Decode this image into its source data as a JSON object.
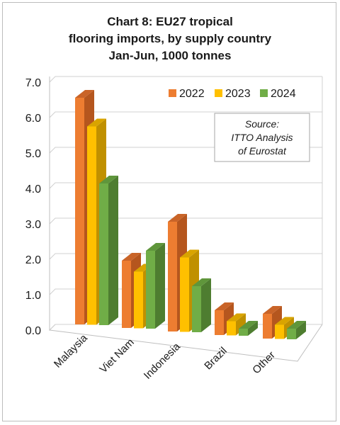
{
  "chart_data": {
    "type": "bar",
    "title_lines": [
      "Chart 8: EU27 tropical",
      "flooring imports, by supply country",
      "Jan-Jun, 1000 tonnes"
    ],
    "categories": [
      "Malaysia",
      "Viet Nam",
      "Indonesia",
      "Brazil",
      "Other"
    ],
    "series": [
      {
        "name": "2022",
        "values": [
          6.4,
          1.9,
          3.1,
          0.7,
          0.7
        ],
        "color": "#ed7d31",
        "side_color": "#b5561e",
        "top_color": "#c96428"
      },
      {
        "name": "2023",
        "values": [
          5.6,
          1.6,
          2.1,
          0.4,
          0.4
        ],
        "color": "#ffc000",
        "side_color": "#c09000",
        "top_color": "#d9a400"
      },
      {
        "name": "2024",
        "values": [
          4.0,
          2.2,
          1.3,
          0.2,
          0.3
        ],
        "color": "#70ad47",
        "side_color": "#4e7d30",
        "top_color": "#5f963b"
      }
    ],
    "y_ticks": [
      "0.0",
      "1.0",
      "2.0",
      "3.0",
      "4.0",
      "5.0",
      "6.0",
      "7.0"
    ],
    "ylim": [
      0,
      7
    ],
    "grid": true,
    "legend_position": "top-right",
    "three_d": true,
    "note_lines": [
      "Source:",
      "ITTO Analysis",
      "of Eurostat"
    ]
  }
}
